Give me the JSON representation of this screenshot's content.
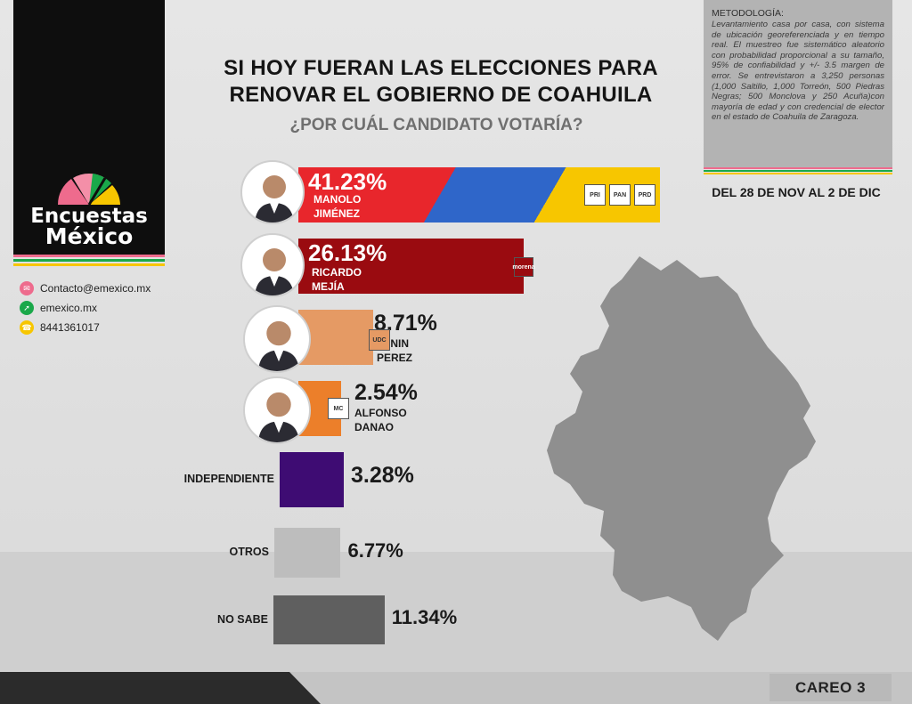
{
  "brand": {
    "line1": "Encuestas",
    "line2": "México",
    "accent_colors": [
      "#ee6b8d",
      "#1aa84a",
      "#f7c600",
      "#f07e2a"
    ]
  },
  "contacts": [
    {
      "icon": "mail-icon",
      "text": "Contacto@emexico.mx",
      "color": "#ee6b8d"
    },
    {
      "icon": "cursor-icon",
      "text": "emexico.mx",
      "color": "#1aa84a"
    },
    {
      "icon": "phone-icon",
      "text": "8441361017",
      "color": "#f7c600"
    }
  ],
  "headline": {
    "line1": "SI HOY FUERAN LAS ELECCIONES PARA",
    "line2": "RENOVAR EL GOBIERNO DE COAHUILA",
    "question": "¿POR CUÁL CANDIDATO VOTARÍA?"
  },
  "methodology": {
    "heading": "METODOLOGÍA:",
    "text": "Levantamiento casa por casa, con sistema de ubicación georeferenciada y en tiempo real. El muestreo fue sistemático aleatorio con probabilidad proporcional a su tamaño, 95% de confiabilidad y +/- 3.5 margen de error. Se entrevistaron a 3,250 personas (1,000 Saltillo, 1,000 Torreón, 500 Piedras Negras; 500 Monclova y 250 Acuña)con mayoría de edad y con credencial de elector en el estado de Coahuila de Zaragoza."
  },
  "date_range": "DEL 28 DE NOV AL 2 DE DIC",
  "footer": {
    "tag": "CAREO 3"
  },
  "chart_data": {
    "type": "bar",
    "orientation": "horizontal",
    "unit": "%",
    "categories": [
      "MANOLO JIMÉNEZ",
      "RICARDO MEJÍA",
      "LENIN PEREZ",
      "ALFONSO DANAO",
      "INDEPENDIENTE",
      "OTROS",
      "NO SABE"
    ],
    "values": [
      41.23,
      26.13,
      8.71,
      2.54,
      3.28,
      6.77,
      11.34
    ],
    "value_labels": [
      "41.23%",
      "26.13%",
      "8.71%",
      "2.54%",
      "3.28%",
      "6.77%",
      "11.34%"
    ],
    "colors": [
      "#e8262c",
      "#9a0b10",
      "#e59a64",
      "#ec7f2a",
      "#3e0c73",
      "#bdbdbd",
      "#5f5f5f"
    ],
    "candidates": [
      {
        "name_1": "MANOLO",
        "name_2": "JIMÉNEZ",
        "party_logos": [
          "PRI",
          "PAN",
          "PRD"
        ]
      },
      {
        "name_1": "RICARDO",
        "name_2": "MEJÍA",
        "party_logos": [
          "morena"
        ]
      },
      {
        "name_1": "LENIN",
        "name_2": "PEREZ",
        "party_logos": [
          "UDC"
        ]
      },
      {
        "name_1": "ALFONSO",
        "name_2": "DANAO",
        "party_logos": [
          "MC"
        ]
      }
    ],
    "other_labels": [
      "INDEPENDIENTE",
      "OTROS",
      "NO SABE"
    ]
  }
}
